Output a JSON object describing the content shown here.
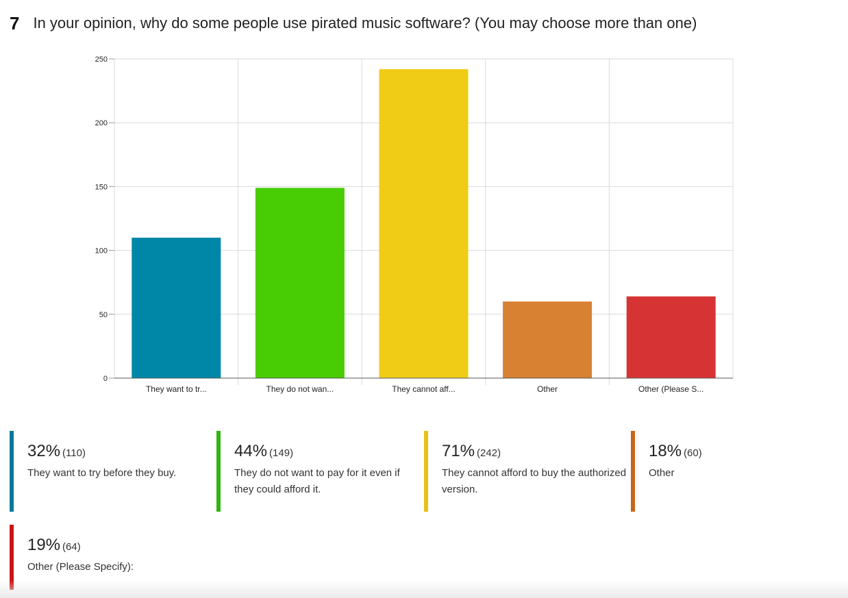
{
  "question": {
    "number": "7",
    "text": "In your opinion, why do some people use pirated music software? (You may choose more than one)"
  },
  "chart_data": {
    "type": "bar",
    "categories": [
      "They want to tr...",
      "They do not wan...",
      "They cannot aff...",
      "Other",
      "Other (Please S..."
    ],
    "values": [
      110,
      149,
      242,
      60,
      64
    ],
    "colors": [
      "#0087a8",
      "#48cc04",
      "#f0cc17",
      "#d88133",
      "#d63434"
    ],
    "yticks": [
      0,
      50,
      100,
      150,
      200,
      250
    ],
    "ylim": [
      0,
      250
    ],
    "grid": true
  },
  "legend": [
    {
      "percent": "32%",
      "count": "(110)",
      "label": "They want to try before they buy.",
      "color": "#05799a"
    },
    {
      "percent": "44%",
      "count": "(149)",
      "label": "They do not want to pay for it even if they could afford it.",
      "color": "#30b512"
    },
    {
      "percent": "71%",
      "count": "(242)",
      "label": "They cannot afford to buy the authorized version.",
      "color": "#e8c016"
    },
    {
      "percent": "18%",
      "count": "(60)",
      "label": "Other",
      "color": "#c8651a"
    },
    {
      "percent": "19%",
      "count": "(64)",
      "label": "Other (Please Specify):",
      "color": "#cc1414"
    }
  ]
}
